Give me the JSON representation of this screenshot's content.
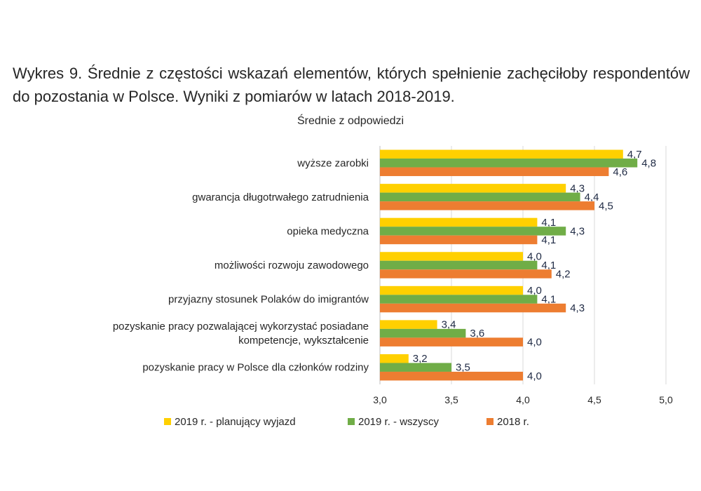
{
  "page": {
    "title": "Wykres 9. Średnie z częstości wskazań elementów, których spełnienie zachęciłoby respondentów do pozostania w Polsce. Wyniki z pomiarów w latach 2018-2019."
  },
  "chart_data": {
    "type": "bar",
    "orientation": "horizontal",
    "title": "Średnie z odpowiedzi",
    "categories": [
      [
        "wyższe zarobki"
      ],
      [
        "gwarancja długotrwałego zatrudnienia"
      ],
      [
        "opieka medyczna"
      ],
      [
        "możliwości rozwoju zawodowego"
      ],
      [
        "przyjazny stosunek Polaków do imigrantów"
      ],
      [
        "pozyskanie pracy pozwalającej wykorzystać posiadane",
        "kompetencje, wykształcenie"
      ],
      [
        "pozyskanie pracy w Polsce dla członków rodziny"
      ]
    ],
    "series": [
      {
        "name": "2019 r. - planujący wyjazd",
        "color": "#ffd000",
        "values": [
          4.7,
          4.3,
          4.1,
          4.0,
          4.0,
          3.4,
          3.2
        ]
      },
      {
        "name": "2019 r. - wszyscy",
        "color": "#70ad47",
        "values": [
          4.8,
          4.4,
          4.3,
          4.1,
          4.1,
          3.6,
          3.5
        ]
      },
      {
        "name": "2018 r.",
        "color": "#ed7d31",
        "values": [
          4.6,
          4.5,
          4.1,
          4.2,
          4.3,
          4.0,
          4.0
        ]
      }
    ],
    "value_labels": [
      [
        "4,7",
        "4,3",
        "4,1",
        "4,0",
        "4,0",
        "3,4",
        "3,2"
      ],
      [
        "4,8",
        "4,4",
        "4,3",
        "4,1",
        "4,1",
        "3,6",
        "3,5"
      ],
      [
        "4,6",
        "4,5",
        "4,1",
        "4,2",
        "4,3",
        "4,0",
        "4,0"
      ]
    ],
    "xlim": [
      3.0,
      5.0
    ],
    "xticks": [
      3.0,
      3.5,
      4.0,
      4.5,
      5.0
    ],
    "xtick_labels": [
      "3,0",
      "3,5",
      "4,0",
      "4,5",
      "5,0"
    ],
    "grid": true,
    "legend_position": "bottom"
  }
}
